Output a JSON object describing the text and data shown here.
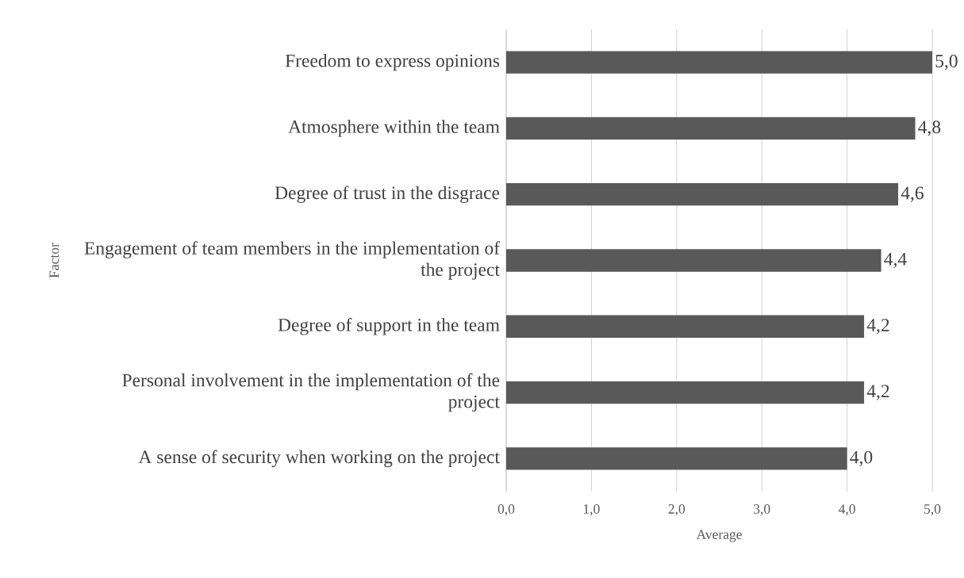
{
  "chart_data": {
    "type": "bar",
    "orientation": "horizontal",
    "xlabel": "Average",
    "ylabel": "Factor",
    "categories": [
      "Freedom to express opinions",
      "Atmosphere within the team",
      "Degree of trust in the disgrace",
      "Engagement of team members in the implementation of the project",
      "Degree of support in the team",
      "Personal involvement in the implementation of the project",
      "A sense of security when working on the project"
    ],
    "values": [
      5.0,
      4.8,
      4.6,
      4.4,
      4.2,
      4.2,
      4.0
    ],
    "value_labels": [
      "5,0",
      "4,8",
      "4,6",
      "4,4",
      "4,2",
      "4,2",
      "4,0"
    ],
    "color": "#595959",
    "xlim": [
      0,
      5
    ],
    "xticks": [
      {
        "value": 0,
        "label": "0,0"
      },
      {
        "value": 1,
        "label": "1,0"
      },
      {
        "value": 2,
        "label": "2,0"
      },
      {
        "value": 3,
        "label": "3,0"
      },
      {
        "value": 4,
        "label": "4,0"
      },
      {
        "value": 5,
        "label": "5,0"
      }
    ],
    "grid": "x"
  }
}
